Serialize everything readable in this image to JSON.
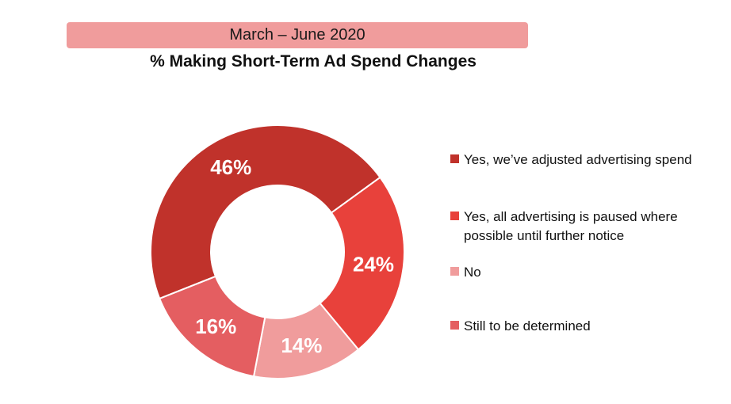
{
  "header": {
    "date_range": "March – June 2020",
    "title": "% Making Short-Term Ad Spend Changes"
  },
  "chart_data": {
    "type": "pie",
    "title": "% Making Short-Term Ad Spend Changes",
    "subtitle": "March – June 2020",
    "donut": true,
    "categories": [
      "Yes, we’ve adjusted advertising spend",
      "Yes, all advertising is paused where possible until further notice",
      "No",
      "Still to be determined"
    ],
    "values": [
      46,
      24,
      14,
      16
    ],
    "labels": [
      "46%",
      "24%",
      "14%",
      "16%"
    ],
    "colors": [
      "#c0322b",
      "#e8413b",
      "#f09c9c",
      "#e45e61"
    ],
    "legend_position": "right"
  }
}
